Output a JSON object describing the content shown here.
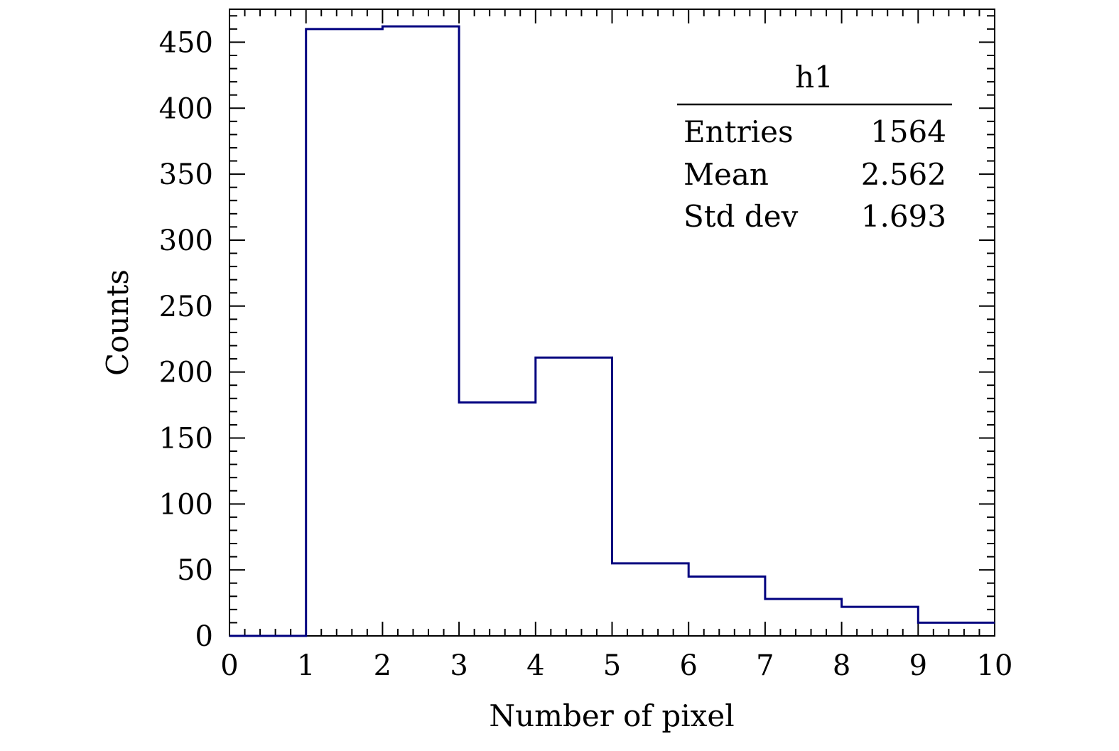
{
  "chart_data": {
    "type": "bar",
    "subtype": "histogram-step",
    "xlabel": "Number of pixel",
    "ylabel": "Counts",
    "xlim": [
      0,
      10
    ],
    "ylim": [
      0,
      475
    ],
    "bin_edges": [
      0,
      1,
      2,
      3,
      4,
      5,
      6,
      7,
      8,
      9,
      10
    ],
    "series": [
      {
        "values": [
          0,
          460,
          462,
          177,
          211,
          55,
          45,
          28,
          22,
          10
        ],
        "color": "#00007f"
      }
    ],
    "x_ticks": [
      "0",
      "1",
      "2",
      "3",
      "4",
      "5",
      "6",
      "7",
      "8",
      "9",
      "10"
    ],
    "y_ticks": [
      "0",
      "50",
      "100",
      "150",
      "200",
      "250",
      "300",
      "350",
      "400",
      "450"
    ],
    "grid": false,
    "legend": "none",
    "stats_box": {
      "title": "h1",
      "placement": "top-right",
      "rows": [
        {
          "label": "Entries",
          "value": "1564"
        },
        {
          "label": "Mean",
          "value": "2.562"
        },
        {
          "label": "Std dev",
          "value": "1.693"
        }
      ]
    }
  }
}
